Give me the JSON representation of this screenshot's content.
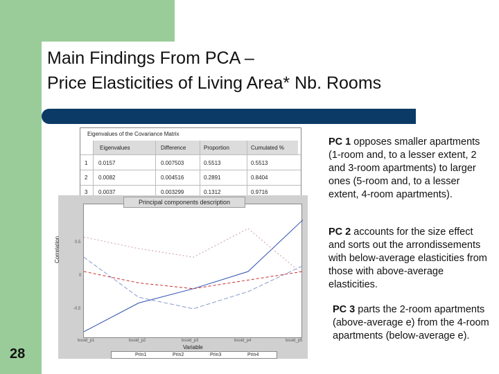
{
  "slide": {
    "title_line1": "Main Findings From PCA –",
    "title_line2": "Price Elasticities of Living Area* Nb. Rooms",
    "number": "28"
  },
  "eigen_table": {
    "caption": "Eigenvalues of the Covariance Matrix",
    "columns": [
      "Eigenvalues",
      "Difference",
      "Proportion",
      "Cumulated %"
    ],
    "rows": [
      [
        "1",
        "0.0157",
        "0.007503",
        "0.5513",
        "0.5513"
      ],
      [
        "2",
        "0.0082",
        "0.004516",
        "0.2891",
        "0.8404"
      ],
      [
        "3",
        "0.0037",
        "0.003299",
        "0.1312",
        "0.9716"
      ]
    ]
  },
  "plot": {
    "caption": "Principal components description",
    "ylabel": "Correlation",
    "xlabel": "Variable",
    "yticks": [
      "0.5",
      "0",
      "-0.5"
    ],
    "xticks": [
      "bsoid_p1",
      "bsoid_p2",
      "bsoid_p3",
      "bsoid_p4",
      "bsoid_p5"
    ],
    "legend": [
      "Prin1",
      "Prin2",
      "Prin3",
      "Prin4"
    ]
  },
  "chart_data": {
    "type": "line",
    "x": [
      1,
      2,
      3,
      4,
      5
    ],
    "series": [
      {
        "name": "Prin1",
        "values": [
          -0.95,
          -0.45,
          -0.2,
          0.1,
          1.0
        ]
      },
      {
        "name": "Prin2",
        "values": [
          0.1,
          -0.1,
          -0.2,
          -0.05,
          0.1
        ]
      },
      {
        "name": "Prin3",
        "values": [
          0.7,
          0.5,
          0.35,
          0.85,
          0.05
        ]
      },
      {
        "name": "Prin4",
        "values": [
          0.35,
          -0.35,
          -0.55,
          -0.25,
          0.2
        ]
      }
    ],
    "colors": [
      "#2a4fb0",
      "#cc2a2a",
      "#cc99aa",
      "#8899cc"
    ],
    "ylim": [
      -1.0,
      1.2
    ]
  },
  "paragraphs": [
    {
      "lead": "PC 1",
      "text": " opposes smaller apartments (1-room and, to a lesser extent, 2 and 3-room apartments) to larger ones (5-room and, to a lesser extent, 4-room apartments)."
    },
    {
      "lead": "PC 2",
      "text": " accounts for the size effect and sorts out the arrondissements with below-average elasticities from those with above-average elasticities."
    },
    {
      "lead": "PC 3",
      "text": " parts the 2-room apartments (above-average e) from the 4-room apartments (below-average e)."
    }
  ]
}
